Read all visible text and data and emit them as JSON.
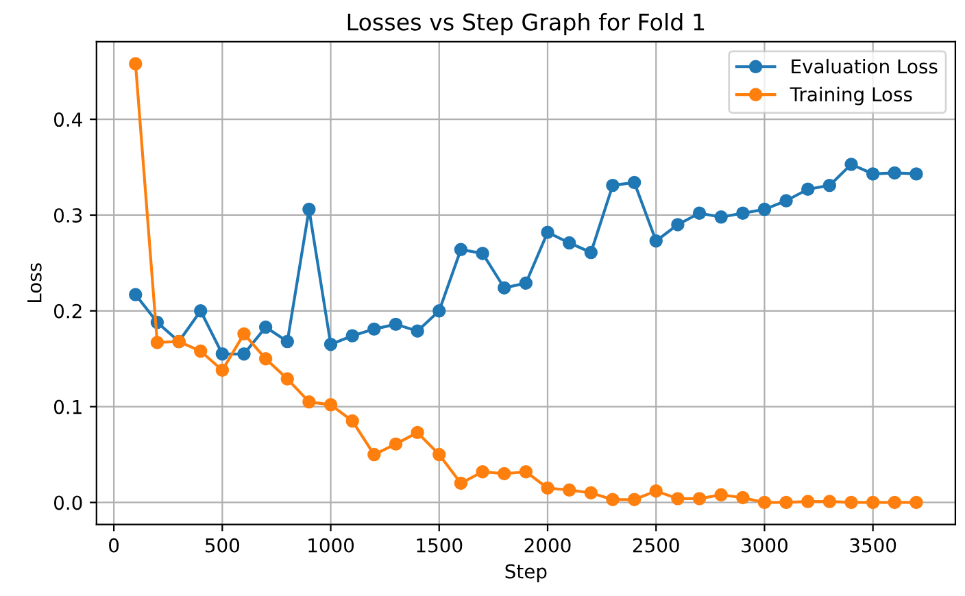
{
  "chart_data": {
    "type": "line",
    "title": "Losses vs Step Graph for Fold 1",
    "xlabel": "Step",
    "ylabel": "Loss",
    "x": [
      100,
      200,
      300,
      400,
      500,
      600,
      700,
      800,
      900,
      1000,
      1100,
      1200,
      1300,
      1400,
      1500,
      1600,
      1700,
      1800,
      1900,
      2000,
      2100,
      2200,
      2300,
      2400,
      2500,
      2600,
      2700,
      2800,
      2900,
      3000,
      3100,
      3200,
      3300,
      3400,
      3500,
      3600,
      3700
    ],
    "series": [
      {
        "name": "Evaluation Loss",
        "color": "#1f77b4",
        "values": [
          0.217,
          0.188,
          0.168,
          0.2,
          0.155,
          0.155,
          0.183,
          0.168,
          0.306,
          0.165,
          0.174,
          0.181,
          0.186,
          0.179,
          0.2,
          0.264,
          0.26,
          0.224,
          0.229,
          0.282,
          0.271,
          0.261,
          0.331,
          0.334,
          0.273,
          0.29,
          0.302,
          0.298,
          0.302,
          0.306,
          0.315,
          0.327,
          0.331,
          0.353,
          0.343,
          0.344,
          0.343
        ]
      },
      {
        "name": "Training Loss",
        "color": "#ff7f0e",
        "values": [
          0.458,
          0.167,
          0.168,
          0.158,
          0.138,
          0.176,
          0.15,
          0.129,
          0.105,
          0.102,
          0.085,
          0.05,
          0.061,
          0.073,
          0.05,
          0.02,
          0.032,
          0.03,
          0.032,
          0.015,
          0.013,
          0.01,
          0.003,
          0.003,
          0.012,
          0.004,
          0.004,
          0.008,
          0.005,
          0.0,
          0.0,
          0.001,
          0.001,
          0.0,
          0.0,
          0.0,
          0.0
        ]
      }
    ],
    "xlim": [
      -80,
      3880
    ],
    "xticks": [
      0,
      500,
      1000,
      1500,
      2000,
      2500,
      3000,
      3500
    ],
    "ylim": [
      -0.023,
      0.481
    ],
    "yticks": [
      {
        "value": 0.0,
        "label": "0.0"
      },
      {
        "value": 0.1,
        "label": "0.1"
      },
      {
        "value": 0.2,
        "label": "0.2"
      },
      {
        "value": 0.3,
        "label": "0.3"
      },
      {
        "value": 0.4,
        "label": "0.4"
      }
    ],
    "grid": true,
    "legend": "top right",
    "marker": "circle",
    "line_style": "solid"
  }
}
